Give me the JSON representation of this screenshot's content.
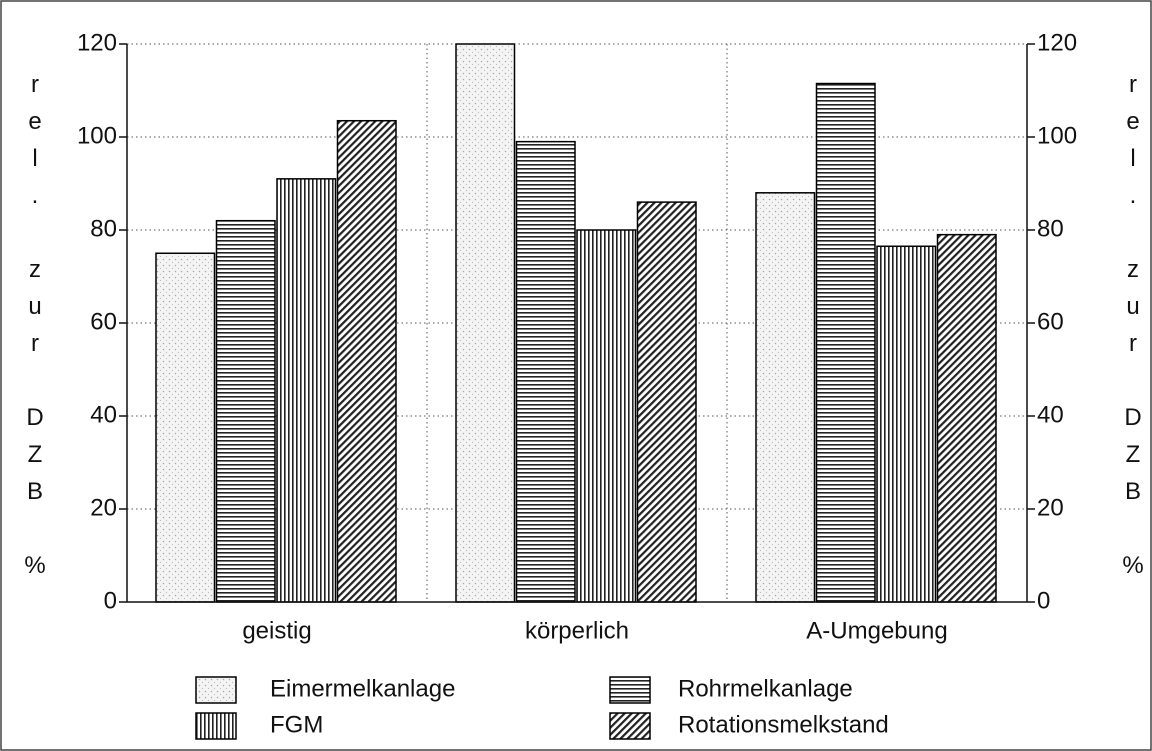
{
  "chart_data": {
    "type": "bar",
    "categories": [
      "geistig",
      "körperlich",
      "A-Umgebung"
    ],
    "series": [
      {
        "name": "Eimermelkanlage",
        "color": "#000000",
        "pattern": "dots",
        "values": [
          75,
          120,
          88
        ]
      },
      {
        "name": "Rohrmelkanlage",
        "color": "#000000",
        "pattern": "horizontal",
        "values": [
          82,
          99,
          111.5
        ]
      },
      {
        "name": "FGM",
        "color": "#000000",
        "pattern": "vertical",
        "values": [
          91,
          80,
          76.5
        ]
      },
      {
        "name": "Rotationsmelkstand",
        "color": "#000000",
        "pattern": "diagonal",
        "values": [
          103.5,
          86,
          79
        ]
      }
    ],
    "y_label": "rel. zur DZB %",
    "y2_label": "rel. zur DZB %",
    "ylim": [
      0,
      120
    ],
    "yticks": [
      0,
      20,
      40,
      60,
      80,
      100,
      120
    ],
    "y2lim": [
      0,
      120
    ],
    "y2ticks": [
      0,
      20,
      40,
      60,
      80,
      100,
      120
    ],
    "grid": true
  }
}
